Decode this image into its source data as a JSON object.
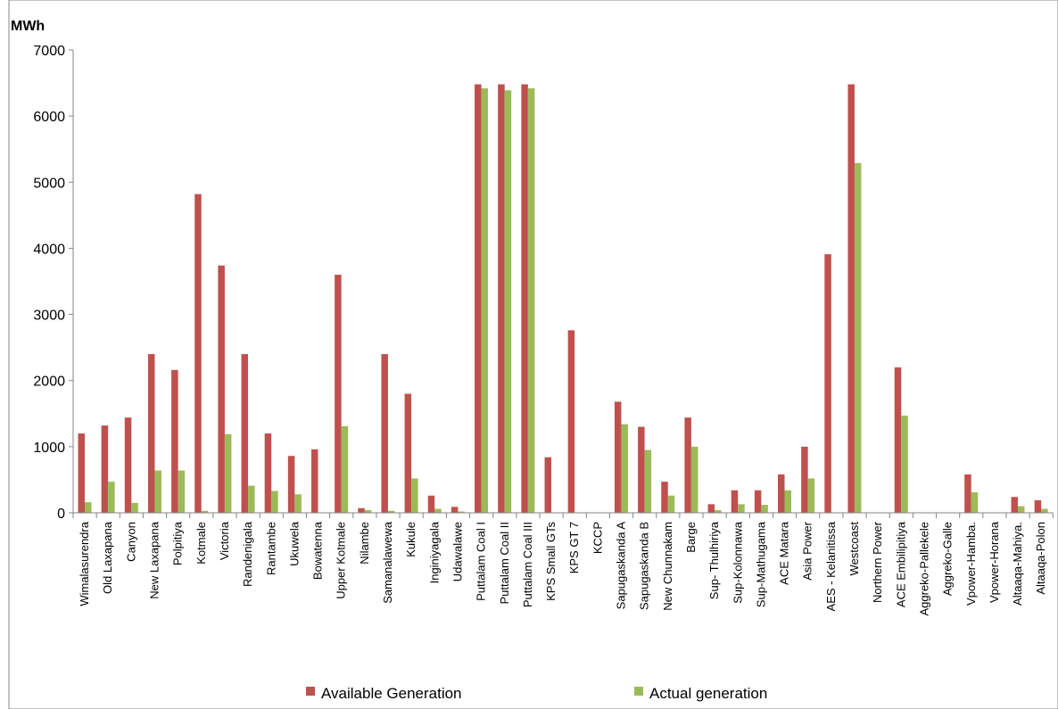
{
  "chart_data": {
    "type": "bar",
    "ylabel": "MWh",
    "ylim": [
      0,
      7000
    ],
    "yticks": [
      0,
      1000,
      2000,
      3000,
      4000,
      5000,
      6000,
      7000
    ],
    "grid": false,
    "legend_position": "bottom",
    "categories": [
      "Wimalasurendra",
      "Old Laxapana",
      "Canyon",
      "New Laxapana",
      "Polpitiya",
      "Kotmale",
      "Victoria",
      "Randenigala",
      "Rantambe",
      "Ukuwela",
      "Bowatenna",
      "Upper Kotmale",
      "Nilambe",
      "Samanalawewa",
      "Kukule",
      "Inginiyagala",
      "Udawalawe",
      "Puttalam Coal I",
      "Puttalam Coal II",
      "Puttalam Coal III",
      "KPS Small GTs",
      "KPS GT 7",
      "KCCP",
      "Sapugaskanda A",
      "Sapugaskanda B",
      "New Chunnakam",
      "Barge",
      "Sup- Thulhiriya",
      "Sup-Kolonnawa",
      "Sup-Mathugama",
      "ACE Matara",
      "Asia Power",
      "AES - Kelanitissa",
      "Westcoast",
      "Northern Power",
      "ACE Embilipitiya",
      "Aggreko-Pallekele",
      "Aggreko-Galle",
      "Vpower-Hamba.",
      "Vpower-Horana",
      "Altaaqa-Mahiya.",
      "Altaaqa-Polon"
    ],
    "series": [
      {
        "name": "Available Generation",
        "color": "#c0504d",
        "values": [
          1200,
          1320,
          1440,
          2400,
          2160,
          4820,
          3740,
          2400,
          1200,
          860,
          960,
          3600,
          70,
          2400,
          1800,
          260,
          90,
          6480,
          6480,
          6480,
          840,
          2760,
          0,
          1680,
          1300,
          470,
          1440,
          130,
          340,
          340,
          580,
          1000,
          3910,
          6480,
          0,
          2200,
          0,
          0,
          580,
          0,
          240,
          190
        ]
      },
      {
        "name": "Actual generation",
        "color": "#9bbb59",
        "values": [
          160,
          470,
          150,
          640,
          640,
          30,
          1190,
          410,
          330,
          280,
          0,
          1310,
          40,
          30,
          520,
          60,
          20,
          6420,
          6390,
          6420,
          0,
          0,
          0,
          1340,
          950,
          260,
          1000,
          40,
          130,
          120,
          340,
          520,
          0,
          5290,
          0,
          1470,
          0,
          0,
          310,
          0,
          100,
          60
        ]
      }
    ]
  }
}
